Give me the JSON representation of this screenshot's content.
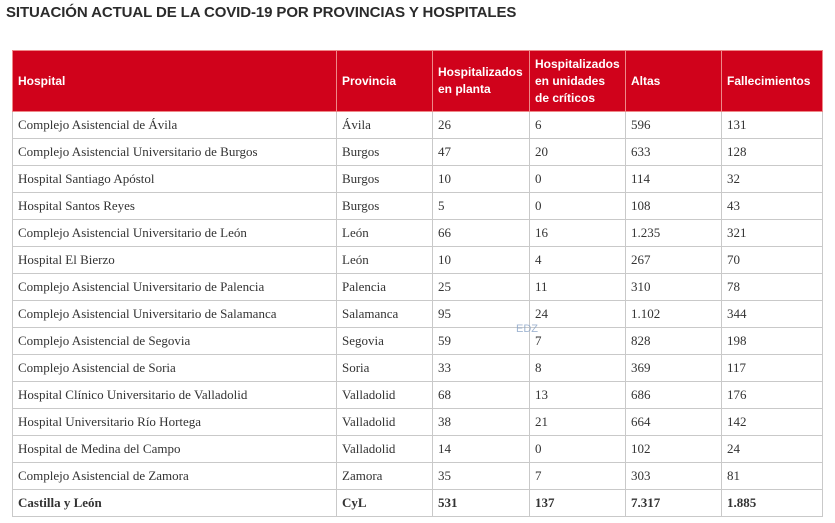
{
  "header": {
    "title": "SITUACIÓN ACTUAL DE LA COVID-19 POR PROVINCIAS Y HOSPITALES"
  },
  "table": {
    "columns": [
      "Hospital",
      "Provincia",
      "Hospitalizados en planta",
      "Hospitalizados en unidades de críticos",
      "Altas",
      "Fallecimientos"
    ],
    "rows": [
      [
        "Complejo Asistencial de Ávila",
        "Ávila",
        "26",
        "6",
        "596",
        "131"
      ],
      [
        "Complejo Asistencial Universitario de Burgos",
        "Burgos",
        "47",
        "20",
        "633",
        "128"
      ],
      [
        "Hospital Santiago Apóstol",
        "Burgos",
        "10",
        "0",
        "114",
        "32"
      ],
      [
        "Hospital Santos Reyes",
        "Burgos",
        "5",
        "0",
        "108",
        "43"
      ],
      [
        "Complejo Asistencial Universitario de León",
        "León",
        "66",
        "16",
        "1.235",
        "321"
      ],
      [
        "Hospital El Bierzo",
        "León",
        "10",
        "4",
        "267",
        "70"
      ],
      [
        "Complejo Asistencial Universitario de Palencia",
        "Palencia",
        "25",
        "11",
        "310",
        "78"
      ],
      [
        "Complejo Asistencial Universitario de Salamanca",
        "Salamanca",
        "95",
        "24",
        "1.102",
        "344"
      ],
      [
        "Complejo Asistencial de Segovia",
        "Segovia",
        "59",
        "7",
        "828",
        "198"
      ],
      [
        "Complejo Asistencial de Soria",
        "Soria",
        "33",
        "8",
        "369",
        "117"
      ],
      [
        "Hospital Clínico Universitario de Valladolid",
        "Valladolid",
        "68",
        "13",
        "686",
        "176"
      ],
      [
        "Hospital Universitario Río Hortega",
        "Valladolid",
        "38",
        "21",
        "664",
        "142"
      ],
      [
        "Hospital de Medina del Campo",
        "Valladolid",
        "14",
        "0",
        "102",
        "24"
      ],
      [
        "Complejo Asistencial de Zamora",
        "Zamora",
        "35",
        "7",
        "303",
        "81"
      ]
    ],
    "total": [
      "Castilla y León",
      "CyL",
      "531",
      "137",
      "7.317",
      "1.885"
    ]
  },
  "watermark": "EDZ"
}
